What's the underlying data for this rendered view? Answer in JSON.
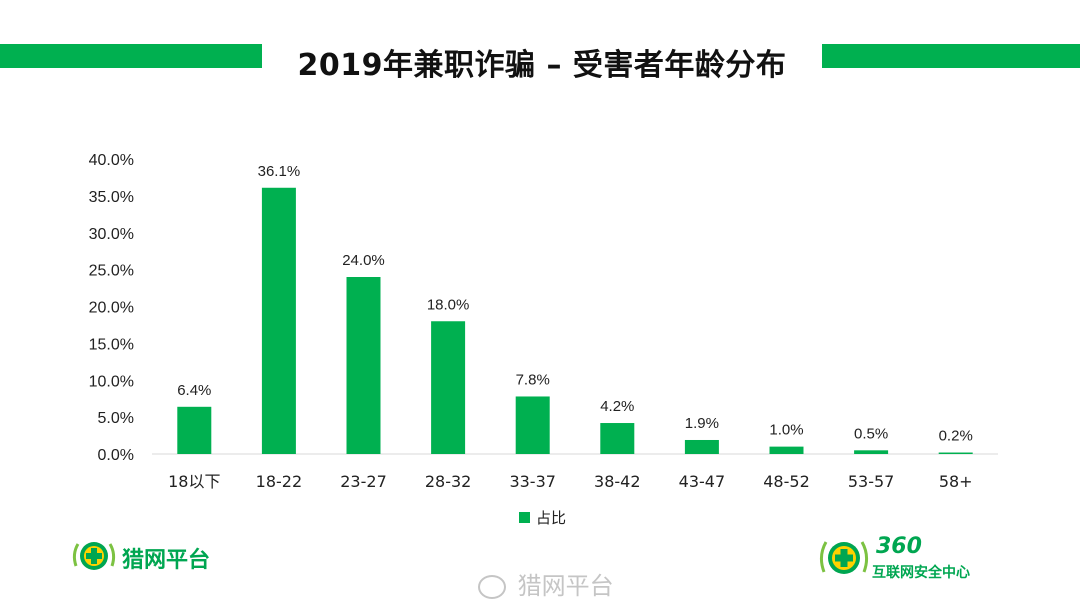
{
  "title": "2019年兼职诈骗 – 受害者年龄分布",
  "colors": {
    "accent": "#00b050",
    "bar": "#00b050",
    "axis": "#d9d9d9",
    "text": "#222222"
  },
  "chart_data": {
    "type": "bar",
    "title": "2019年兼职诈骗 – 受害者年龄分布",
    "categories": [
      "18以下",
      "18-22",
      "23-27",
      "28-32",
      "33-37",
      "38-42",
      "43-47",
      "48-52",
      "53-57",
      "58+"
    ],
    "series": [
      {
        "name": "占比",
        "values": [
          6.4,
          36.1,
          24.0,
          18.0,
          7.8,
          4.2,
          1.9,
          1.0,
          0.5,
          0.2
        ]
      }
    ],
    "data_labels": [
      "6.4%",
      "36.1%",
      "24.0%",
      "18.0%",
      "7.8%",
      "4.2%",
      "1.9%",
      "1.0%",
      "0.5%",
      "0.2%"
    ],
    "yticks": [
      "0.0%",
      "5.0%",
      "10.0%",
      "15.0%",
      "20.0%",
      "25.0%",
      "30.0%",
      "35.0%",
      "40.0%"
    ],
    "ylim": [
      0,
      40
    ],
    "grid": false,
    "legend_position": "bottom"
  },
  "logos": {
    "left_text": "猎网平台",
    "right_number": "360",
    "right_text": "互联网安全中心"
  },
  "watermark": {
    "icon": "weibo-icon",
    "text": "猎网平台"
  }
}
